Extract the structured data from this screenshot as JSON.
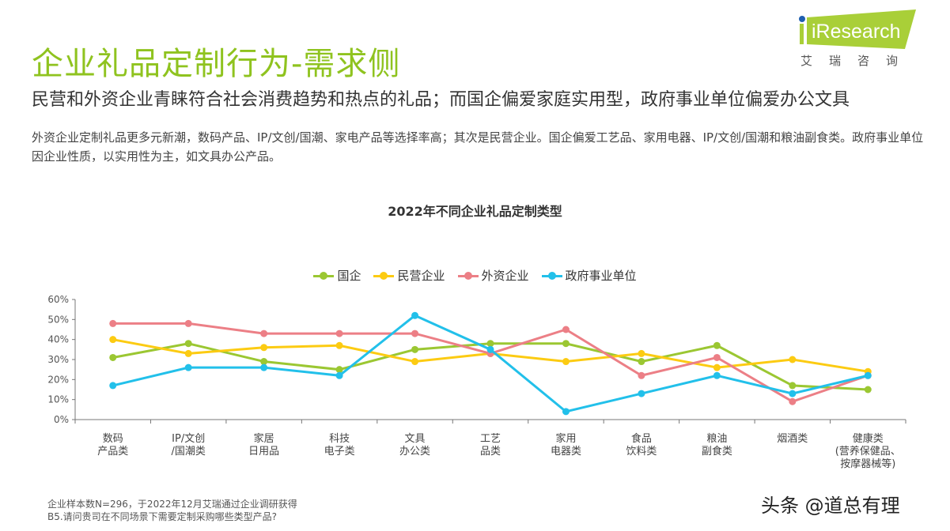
{
  "header": {
    "title": "企业礼品定制行为-需求侧",
    "subtitle": "民营和外资企业青睐符合社会消费趋势和热点的礼品；而国企偏爱家庭实用型，政府事业单位偏爱办公文具",
    "description": "外资企业定制礼品更多元新潮，数码产品、IP/文创/国潮、家电产品等选择率高；其次是民营企业。国企偏爱工艺品、家用电器、IP/文创/国潮和粮油副食类。政府事业单位因企业性质，以实用性为主，如文具办公产品。",
    "logo": {
      "text": "iResearch",
      "cn": "艾瑞咨询",
      "color": "#a9cf38",
      "dot_color": "#1f5fb0"
    }
  },
  "chart_data": {
    "type": "line",
    "title": "2022年不同企业礼品定制类型",
    "categories": [
      "数码\n产品类",
      "IP/文创\n/国潮类",
      "家居\n日用品",
      "科技\n电子类",
      "文具\n办公类",
      "工艺\n品类",
      "家用\n电器类",
      "食品\n饮料类",
      "粮油\n副食类",
      "烟酒类",
      "健康类\n(营养保健品、\n按摩器械等)"
    ],
    "ylim": [
      0,
      60
    ],
    "yticks": [
      "0%",
      "10%",
      "20%",
      "30%",
      "40%",
      "50%",
      "60%"
    ],
    "unit": "%",
    "grid": false,
    "legend_position": "top",
    "series": [
      {
        "name": "国企",
        "color": "#9bc732",
        "values": [
          31,
          38,
          29,
          25,
          35,
          38,
          38,
          29,
          37,
          17,
          15
        ]
      },
      {
        "name": "民营企业",
        "color": "#fccb12",
        "values": [
          40,
          33,
          36,
          37,
          29,
          33,
          29,
          33,
          26,
          30,
          24
        ]
      },
      {
        "name": "外资企业",
        "color": "#ec7f86",
        "values": [
          48,
          48,
          43,
          43,
          43,
          33,
          45,
          22,
          31,
          9,
          22
        ]
      },
      {
        "name": "政府事业单位",
        "color": "#22c0ea",
        "values": [
          17,
          26,
          26,
          22,
          52,
          35,
          4,
          13,
          22,
          13,
          22
        ]
      }
    ]
  },
  "footer": {
    "note1": "企业样本数N=296，于2022年12月艾瑞通过企业调研获得",
    "note2": "B5.请问贵司在不同场景下需要定制采购哪些类型产品?"
  },
  "watermark": "头条 @道总有理"
}
